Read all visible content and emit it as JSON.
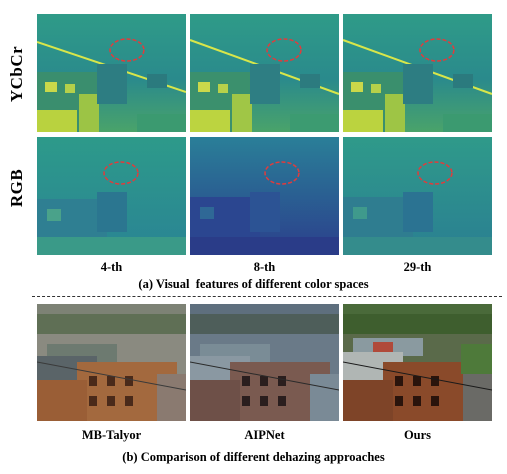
{
  "row_labels": {
    "top": "YCbCr",
    "bottom": "RGB"
  },
  "column_labels": [
    "4-th",
    "8-th",
    "29-th"
  ],
  "caption_a": "(a) Visual  features of different color spaces",
  "method_labels": [
    "MB-Talyor",
    "AIPNet",
    "Ours"
  ],
  "caption_b": "(b) Comparison of different dehazing approaches",
  "colors": {
    "feature_teal": "#2a8c8a",
    "feature_yellow": "#c8d83a",
    "feature_dark": "#2b3c8a",
    "highlight_ellipse": "#e23b3b",
    "divider": "#333333"
  }
}
